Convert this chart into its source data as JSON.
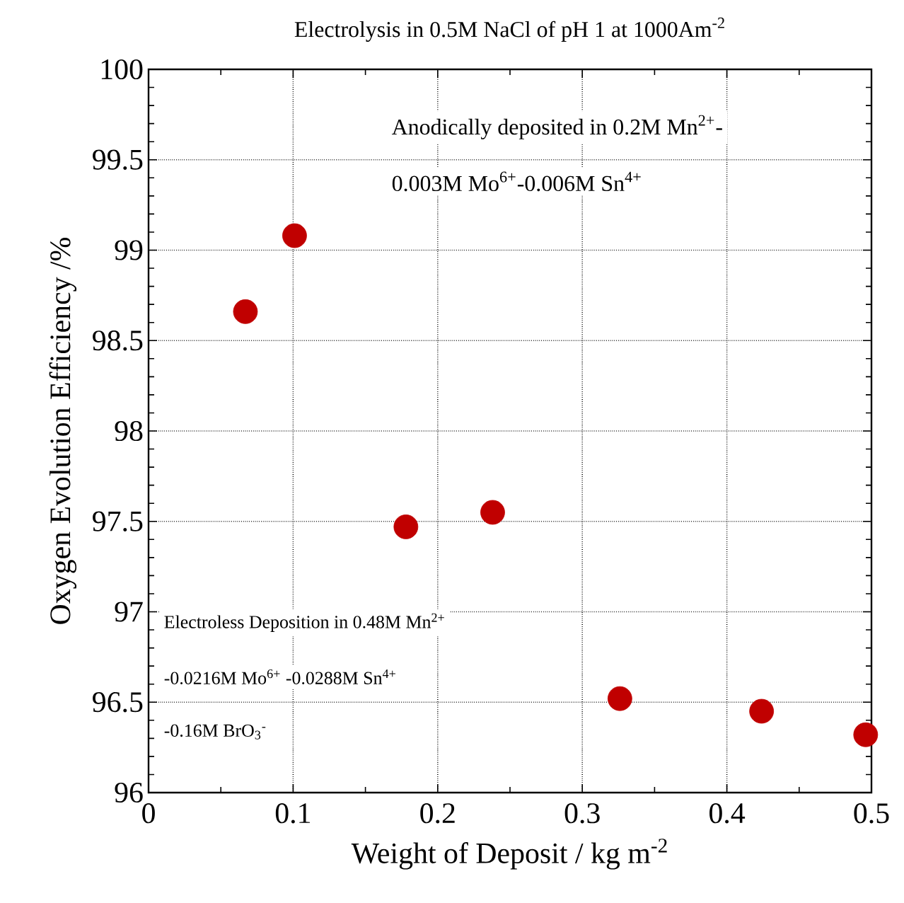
{
  "chart_data": {
    "type": "scatter",
    "title": "Electrolysis in 0.5M NaCl of pH 1 at 1000Am$^{-2}$",
    "xlabel": "Weight of Deposit / kg m$^{-2}$",
    "ylabel": "Oxygen Evolution Efficiency /%",
    "x": [
      0.067,
      0.101,
      0.178,
      0.238,
      0.326,
      0.424,
      0.496
    ],
    "values": [
      98.66,
      99.08,
      97.47,
      97.55,
      96.52,
      96.45,
      96.32
    ],
    "color": "#c00000",
    "marker": "circle",
    "grid": true,
    "xlim": [
      0,
      0.5
    ],
    "xticks": [
      0,
      0.1,
      0.2,
      0.3,
      0.4,
      0.5
    ],
    "ylim": [
      96,
      100
    ],
    "yticks": [
      96,
      96.5,
      97,
      97.5,
      98,
      98.5,
      99,
      99.5,
      100
    ],
    "annotations": [
      "Anodically deposited in 0.2M Mn$^{2+}$-",
      "0.003M Mo$^{6+}$-0.006M Sn$^{4+}$",
      "Electroless Deposition in 0.48M Mn$^{2+}$",
      "-0.0216M Mo$^{6+}$ -0.0288M Sn$^{4+}$",
      "-0.16M BrO$_{3}$$^{-}$"
    ]
  }
}
